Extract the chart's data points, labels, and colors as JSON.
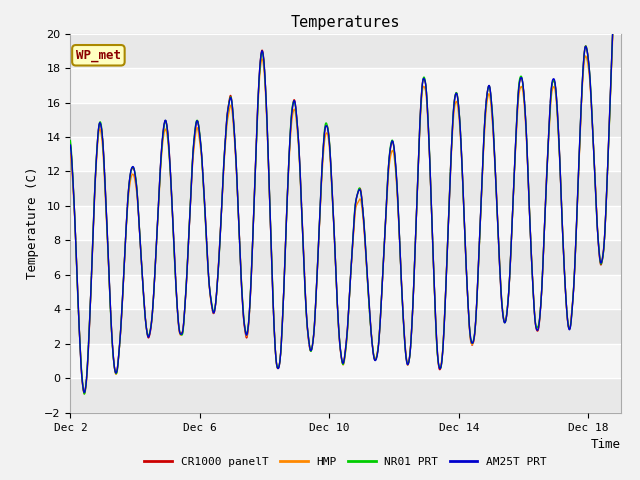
{
  "title": "Temperatures",
  "xlabel": "Time",
  "ylabel": "Temperature (C)",
  "ylim": [
    -2,
    20
  ],
  "yticks": [
    -2,
    0,
    2,
    4,
    6,
    8,
    10,
    12,
    14,
    16,
    18,
    20
  ],
  "xtick_labels": [
    "Dec 2",
    "Dec 6",
    "Dec 10",
    "Dec 14",
    "Dec 18"
  ],
  "xtick_positions": [
    0,
    4,
    8,
    12,
    16
  ],
  "colors": {
    "CR1000 panelT": "#cc0000",
    "HMP": "#ff8800",
    "NR01 PRT": "#00cc00",
    "AM25T PRT": "#0000cc"
  },
  "annotation_text": "WP_met",
  "bg_color": "#ffffff",
  "band_colors": [
    "#e8e8e8",
    "#f5f5f5"
  ],
  "title_fontsize": 11,
  "label_fontsize": 9,
  "tick_fontsize": 8,
  "legend_fontsize": 8,
  "line_width": 1.0
}
